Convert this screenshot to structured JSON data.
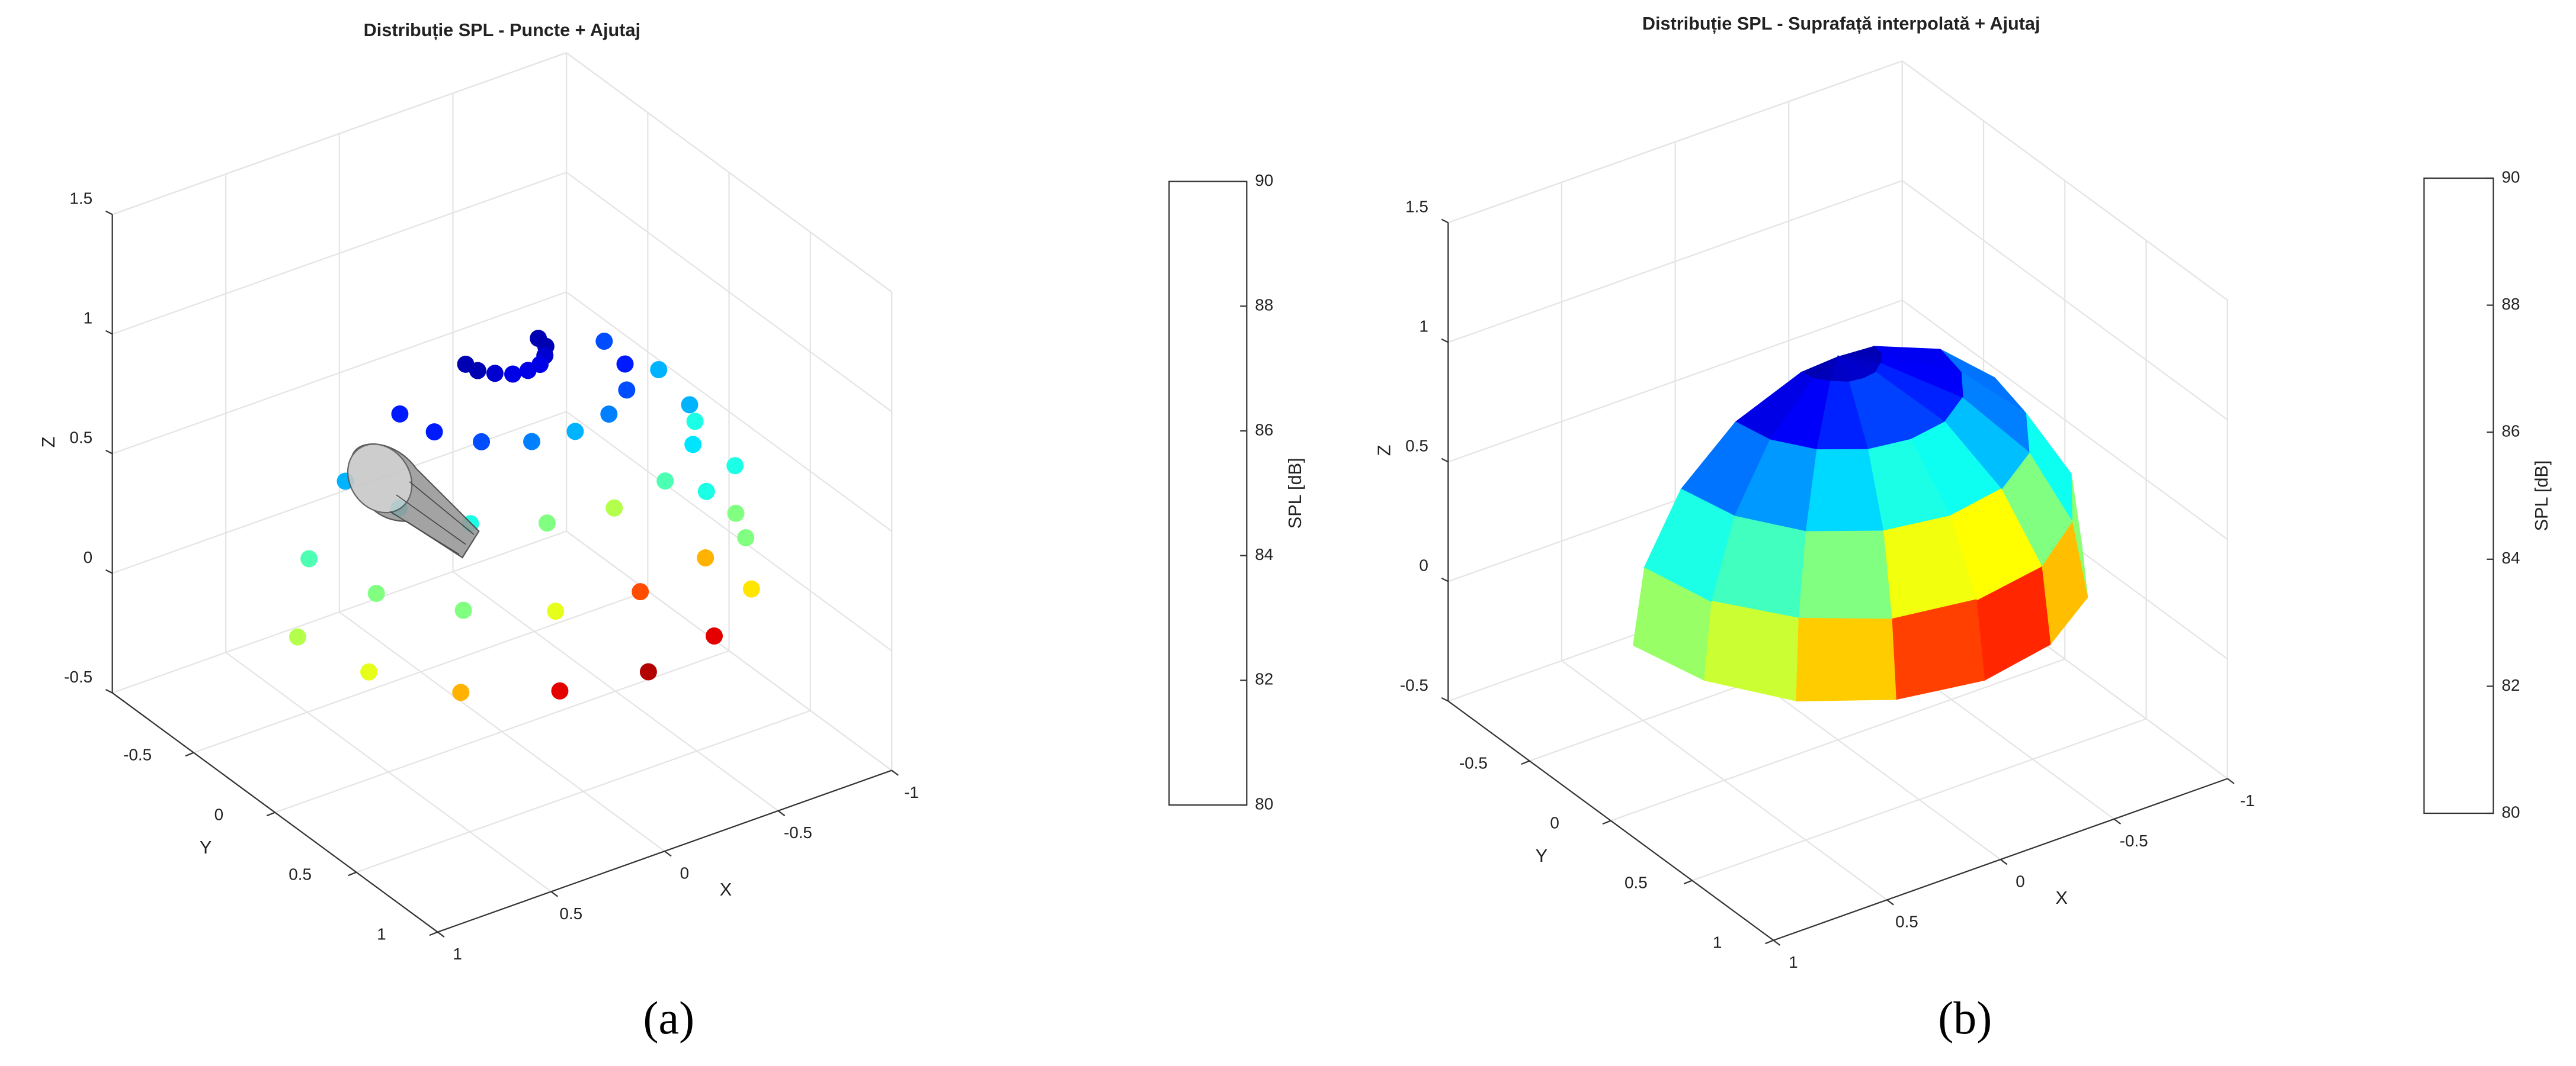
{
  "chart_data": [
    {
      "type": "scatter3d",
      "title": "Distribuție SPL - Puncte + Ajutaj",
      "panel_label": "(a)",
      "xlabel": "X",
      "ylabel": "Y",
      "zlabel": "Z",
      "xlim": [
        -1,
        1
      ],
      "ylim": [
        -1,
        1
      ],
      "zlim": [
        -0.5,
        1.5
      ],
      "xticks": [
        -1,
        -0.5,
        0,
        0.5,
        1
      ],
      "yticks": [
        -0.5,
        0,
        0.5,
        1
      ],
      "zticks": [
        -0.5,
        0,
        0.5,
        1,
        1.5
      ],
      "grid": true,
      "colormap": "jet",
      "colorbar": {
        "label": "SPL [dB]",
        "clim": [
          80,
          90
        ],
        "ticks": [
          80,
          82,
          84,
          86,
          88,
          90
        ]
      },
      "x": [
        -0.9,
        -0.83,
        -0.64,
        -0.34,
        0,
        0.34,
        0.64,
        0.83,
        0.9,
        -0.85,
        -0.79,
        -0.6,
        -0.33,
        0,
        0.33,
        0.6,
        0.79,
        0.85,
        -0.69,
        -0.64,
        -0.49,
        -0.26,
        0,
        0.26,
        0.49,
        0.64,
        0.69,
        -0.45,
        -0.42,
        -0.32,
        -0.17,
        0,
        0.17,
        0.32,
        0.42,
        0.45,
        -0.16,
        -0.15,
        -0.11,
        -0.06,
        0,
        0.06,
        0.11,
        0.15,
        0.16
      ],
      "y": [
        0,
        0.34,
        0.64,
        0.83,
        0.9,
        0.83,
        0.64,
        0.34,
        0,
        0,
        0.33,
        0.6,
        0.79,
        0.85,
        0.79,
        0.6,
        0.33,
        0,
        0,
        0.26,
        0.49,
        0.64,
        0.69,
        0.64,
        0.49,
        0.26,
        0,
        0,
        0.17,
        0.32,
        0.42,
        0.45,
        0.42,
        0.32,
        0.17,
        0,
        0,
        0.06,
        0.11,
        0.15,
        0.16,
        0.15,
        0.11,
        0.06,
        0
      ],
      "z": [
        0.2,
        0.2,
        0.2,
        0.2,
        0.2,
        0.2,
        0.2,
        0.2,
        0.2,
        0.51,
        0.51,
        0.51,
        0.51,
        0.51,
        0.51,
        0.51,
        0.51,
        0.51,
        0.78,
        0.78,
        0.78,
        0.78,
        0.78,
        0.78,
        0.78,
        0.78,
        0.78,
        0.98,
        0.98,
        0.98,
        0.98,
        0.98,
        0.98,
        0.98,
        0.98,
        0.98,
        1.09,
        1.09,
        1.09,
        1.09,
        1.09,
        1.09,
        1.09,
        1.09,
        1.09
      ],
      "values": [
        84,
        85,
        86.5,
        89,
        89.5,
        89,
        87,
        86,
        85.5,
        84,
        84,
        85,
        87,
        88,
        86,
        85,
        85,
        84.5,
        83,
        83,
        83.5,
        84.5,
        85.5,
        85,
        84,
        83.5,
        83,
        82,
        81.5,
        82,
        82.5,
        83,
        82.5,
        82,
        81.5,
        81.5,
        80.5,
        80.5,
        80.8,
        81,
        81,
        81,
        80.8,
        80.5,
        80.5
      ]
    },
    {
      "type": "surface3d",
      "title": "Distribuție SPL - Suprafață interpolată + Ajutaj",
      "panel_label": "(b)",
      "xlabel": "X",
      "ylabel": "Y",
      "zlabel": "Z",
      "xlim": [
        -1,
        1
      ],
      "ylim": [
        -1,
        1
      ],
      "zlim": [
        -0.5,
        1.5
      ],
      "xticks": [
        -1,
        -0.5,
        0,
        0.5,
        1
      ],
      "yticks": [
        -0.5,
        0,
        0.5,
        1
      ],
      "zticks": [
        -0.5,
        0,
        0.5,
        1,
        1.5
      ],
      "grid": true,
      "colormap": "jet",
      "colorbar": {
        "label": "SPL [dB]",
        "clim": [
          80,
          90
        ],
        "ticks": [
          80,
          82,
          84,
          86,
          88,
          90
        ]
      },
      "x": [
        [
          -0.9,
          -0.83,
          -0.64,
          -0.34,
          0,
          0.34,
          0.64,
          0.83,
          0.9
        ],
        [
          -0.85,
          -0.79,
          -0.6,
          -0.33,
          0,
          0.33,
          0.6,
          0.79,
          0.85
        ],
        [
          -0.69,
          -0.64,
          -0.49,
          -0.26,
          0,
          0.26,
          0.49,
          0.64,
          0.69
        ],
        [
          -0.45,
          -0.42,
          -0.32,
          -0.17,
          0,
          0.17,
          0.32,
          0.42,
          0.45
        ],
        [
          -0.16,
          -0.15,
          -0.11,
          -0.06,
          0,
          0.06,
          0.11,
          0.15,
          0.16
        ],
        [
          0,
          0,
          0,
          0,
          0,
          0,
          0,
          0,
          0
        ]
      ],
      "y": [
        [
          0,
          0.34,
          0.64,
          0.83,
          0.9,
          0.83,
          0.64,
          0.34,
          0
        ],
        [
          0,
          0.33,
          0.6,
          0.79,
          0.85,
          0.79,
          0.6,
          0.33,
          0
        ],
        [
          0,
          0.26,
          0.49,
          0.64,
          0.69,
          0.64,
          0.49,
          0.26,
          0
        ],
        [
          0,
          0.17,
          0.32,
          0.42,
          0.45,
          0.42,
          0.32,
          0.17,
          0
        ],
        [
          0,
          0.06,
          0.11,
          0.15,
          0.16,
          0.15,
          0.11,
          0.06,
          0
        ],
        [
          0,
          0,
          0,
          0,
          0,
          0,
          0,
          0,
          0
        ]
      ],
      "z": [
        [
          0.2,
          0.2,
          0.2,
          0.2,
          0.2,
          0.2,
          0.2,
          0.2,
          0.2
        ],
        [
          0.51,
          0.51,
          0.51,
          0.51,
          0.51,
          0.51,
          0.51,
          0.51,
          0.51
        ],
        [
          0.78,
          0.78,
          0.78,
          0.78,
          0.78,
          0.78,
          0.78,
          0.78,
          0.78
        ],
        [
          0.98,
          0.98,
          0.98,
          0.98,
          0.98,
          0.98,
          0.98,
          0.98,
          0.98
        ],
        [
          1.09,
          1.09,
          1.09,
          1.09,
          1.09,
          1.09,
          1.09,
          1.09,
          1.09
        ],
        [
          1.1,
          1.1,
          1.1,
          1.1,
          1.1,
          1.1,
          1.1,
          1.1,
          1.1
        ]
      ],
      "values": [
        [
          84,
          85,
          86.5,
          89,
          89.5,
          89,
          87,
          86,
          85.5
        ],
        [
          84,
          84,
          85,
          87,
          88,
          86,
          85,
          85,
          84.5
        ],
        [
          83,
          83,
          83.5,
          84.5,
          85.5,
          85,
          84,
          83.5,
          83
        ],
        [
          82,
          81.5,
          82,
          82.5,
          83,
          82.5,
          82,
          81.5,
          81.5
        ],
        [
          80.5,
          80.5,
          80.8,
          81,
          81,
          81,
          80.8,
          80.5,
          80.5
        ],
        [
          80.5,
          80.5,
          80.5,
          80.5,
          80.5,
          80.5,
          80.5,
          80.5,
          80.5
        ]
      ]
    }
  ]
}
